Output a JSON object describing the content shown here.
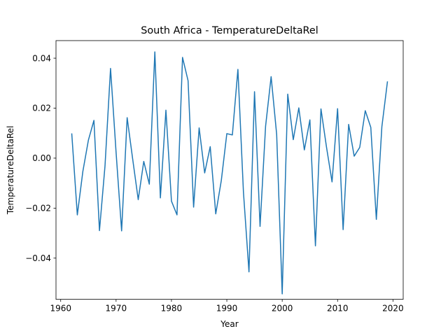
{
  "chart_data": {
    "type": "line",
    "title": "South Africa - TemperatureDeltaRel",
    "xlabel": "Year",
    "ylabel": "TemperatureDeltaRel",
    "xlim": [
      1959.15,
      2021.85
    ],
    "ylim": [
      -0.05648,
      0.04703
    ],
    "x_ticks": [
      1960,
      1970,
      1980,
      1990,
      2000,
      2010,
      2020
    ],
    "x_tick_labels": [
      "1960",
      "1970",
      "1980",
      "1990",
      "2000",
      "2010",
      "2020"
    ],
    "y_ticks": [
      -0.04,
      -0.02,
      0.0,
      0.02,
      0.04
    ],
    "y_tick_labels": [
      "−0.04",
      "−0.02",
      "0.00",
      "0.02",
      "0.04"
    ],
    "grid": false,
    "series": [
      {
        "color": "#1f77b4",
        "x": [
          1962,
          1963,
          1964,
          1965,
          1966,
          1967,
          1968,
          1969,
          1970,
          1971,
          1972,
          1973,
          1974,
          1975,
          1976,
          1977,
          1978,
          1979,
          1980,
          1981,
          1982,
          1983,
          1984,
          1985,
          1986,
          1987,
          1988,
          1989,
          1990,
          1991,
          1992,
          1993,
          1994,
          1995,
          1996,
          1997,
          1998,
          1999,
          2000,
          2001,
          2002,
          2003,
          2004,
          2005,
          2006,
          2007,
          2008,
          2009,
          2010,
          2011,
          2012,
          2013,
          2014,
          2015,
          2016,
          2017,
          2018,
          2019
        ],
        "y": [
          0.0097,
          -0.0227,
          -0.0053,
          0.0072,
          0.0151,
          -0.029,
          -0.0031,
          0.0359,
          0.0023,
          -0.0291,
          0.0162,
          -0.0004,
          -0.0166,
          -0.0013,
          -0.0104,
          0.0425,
          -0.0159,
          0.0192,
          -0.0172,
          -0.0227,
          0.0403,
          0.031,
          -0.0196,
          0.0121,
          -0.0059,
          0.0046,
          -0.0223,
          -0.009,
          0.0098,
          0.0093,
          0.0355,
          -0.0136,
          -0.0455,
          0.0266,
          -0.0273,
          0.0128,
          0.0326,
          0.0095,
          -0.0543,
          0.0256,
          0.0074,
          0.0201,
          0.0033,
          0.0153,
          -0.0351,
          0.0197,
          0.0044,
          -0.0095,
          0.0198,
          -0.0286,
          0.0135,
          0.0008,
          0.0043,
          0.019,
          0.0123,
          -0.0245,
          0.0126,
          0.0305
        ]
      }
    ]
  }
}
